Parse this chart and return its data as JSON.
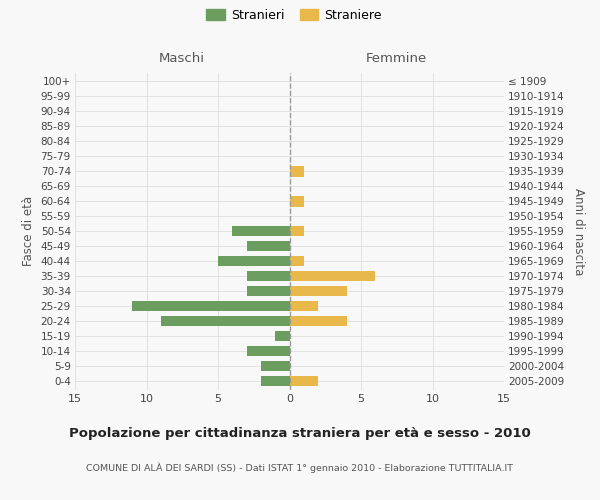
{
  "age_groups_bottom_to_top": [
    "0-4",
    "5-9",
    "10-14",
    "15-19",
    "20-24",
    "25-29",
    "30-34",
    "35-39",
    "40-44",
    "45-49",
    "50-54",
    "55-59",
    "60-64",
    "65-69",
    "70-74",
    "75-79",
    "80-84",
    "85-89",
    "90-94",
    "95-99",
    "100+"
  ],
  "birth_years_bottom_to_top": [
    "2005-2009",
    "2000-2004",
    "1995-1999",
    "1990-1994",
    "1985-1989",
    "1980-1984",
    "1975-1979",
    "1970-1974",
    "1965-1969",
    "1960-1964",
    "1955-1959",
    "1950-1954",
    "1945-1949",
    "1940-1944",
    "1935-1939",
    "1930-1934",
    "1925-1929",
    "1920-1924",
    "1915-1919",
    "1910-1914",
    "≤ 1909"
  ],
  "males_bottom_to_top": [
    2,
    2,
    3,
    1,
    9,
    11,
    3,
    3,
    5,
    3,
    4,
    0,
    0,
    0,
    0,
    0,
    0,
    0,
    0,
    0,
    0
  ],
  "females_bottom_to_top": [
    2,
    0,
    0,
    0,
    4,
    2,
    4,
    6,
    1,
    0,
    1,
    0,
    1,
    0,
    1,
    0,
    0,
    0,
    0,
    0,
    0
  ],
  "male_color": "#6b9e5e",
  "female_color": "#e8b84b",
  "male_label": "Stranieri",
  "female_label": "Straniere",
  "title": "Popolazione per cittadinanza straniera per età e sesso - 2010",
  "subtitle": "COMUNE DI ALÀ DEI SARDI (SS) - Dati ISTAT 1° gennaio 2010 - Elaborazione TUTTITALIA.IT",
  "left_header": "Maschi",
  "right_header": "Femmine",
  "left_ylabel": "Fasce di età",
  "right_ylabel": "Anni di nascita",
  "xlim": 15,
  "background_color": "#f8f8f8",
  "grid_color": "#dddddd"
}
